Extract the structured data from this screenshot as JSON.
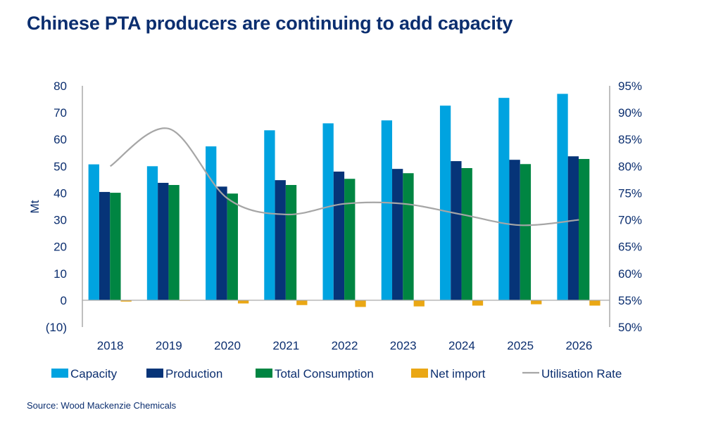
{
  "chart_data": {
    "type": "bar",
    "title": "Chinese PTA producers are continuing to add capacity",
    "ylabel": "Mt",
    "ylim": [
      -10,
      80
    ],
    "yticks": [
      "(10)",
      "0",
      "10",
      "20",
      "30",
      "40",
      "50",
      "60",
      "70",
      "80"
    ],
    "y2lim": [
      50,
      95
    ],
    "y2ticks": [
      "50%",
      "55%",
      "60%",
      "65%",
      "70%",
      "75%",
      "80%",
      "85%",
      "90%",
      "95%"
    ],
    "categories": [
      "2018",
      "2019",
      "2020",
      "2021",
      "2022",
      "2023",
      "2024",
      "2025",
      "2026"
    ],
    "series": [
      {
        "name": "Capacity",
        "kind": "bar",
        "axis": "left",
        "color": "#00a3e0",
        "values": [
          50.7,
          50.0,
          57.4,
          63.4,
          66.0,
          67.1,
          72.6,
          75.5,
          77.0
        ]
      },
      {
        "name": "Production",
        "kind": "bar",
        "axis": "left",
        "color": "#063478",
        "values": [
          40.4,
          43.8,
          42.4,
          44.8,
          48.0,
          49.0,
          51.9,
          52.4,
          53.7
        ]
      },
      {
        "name": "Total Consumption",
        "kind": "bar",
        "axis": "left",
        "color": "#008542",
        "values": [
          40.1,
          43.0,
          39.8,
          43.0,
          45.3,
          47.4,
          49.3,
          50.8,
          52.7
        ]
      },
      {
        "name": "Net import",
        "kind": "bar",
        "axis": "left",
        "color": "#eaa714",
        "values": [
          -0.5,
          -0.2,
          -1.2,
          -1.8,
          -2.5,
          -2.3,
          -2.0,
          -1.5,
          -2.0
        ]
      },
      {
        "name": "Utilisation Rate",
        "kind": "line",
        "axis": "right",
        "color": "#a6a6a6",
        "values": [
          80,
          87,
          74,
          71,
          73,
          73,
          71,
          69,
          70
        ]
      }
    ],
    "legend_position": "bottom",
    "grid": false
  },
  "source": "Source: Wood Mackenzie Chemicals"
}
